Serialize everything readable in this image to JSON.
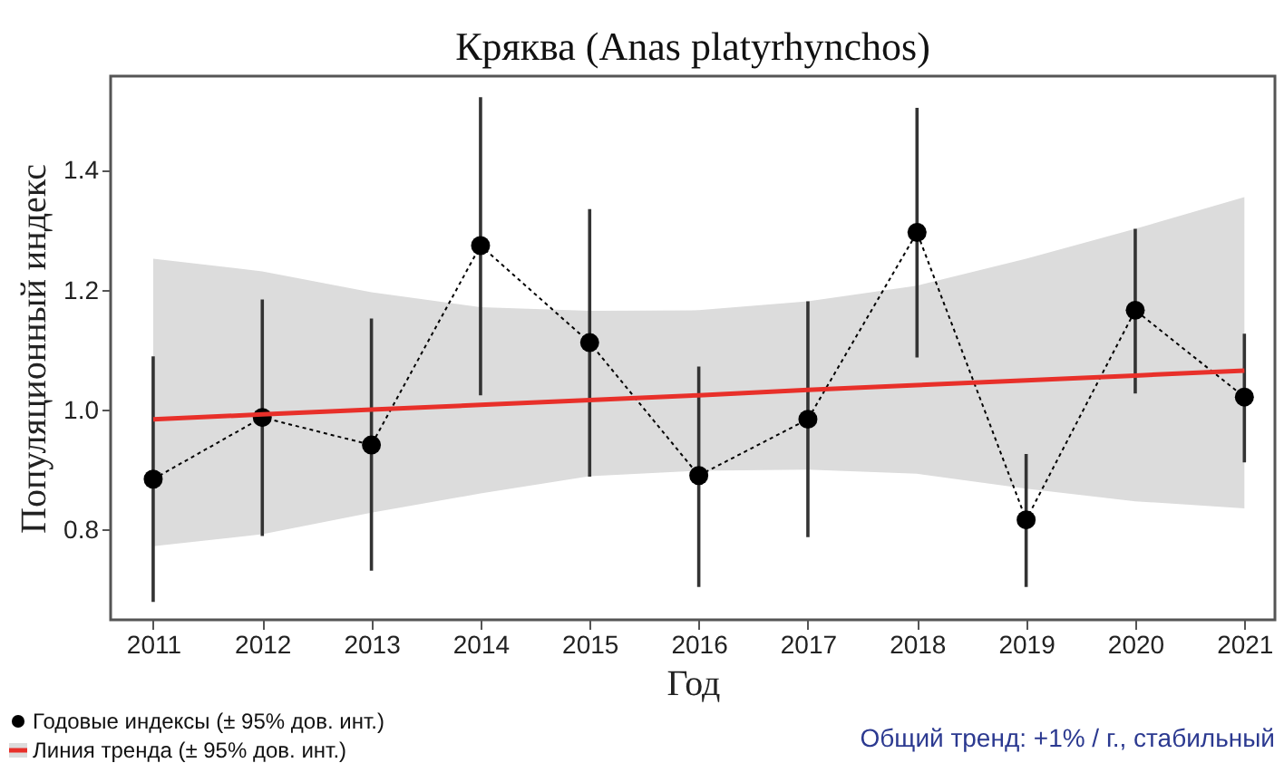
{
  "chart_data": {
    "type": "line",
    "title": "Кряква (Anas platyrhynchos)",
    "xlabel": "Год",
    "ylabel": "Популяционный индекс",
    "x": [
      2011,
      2012,
      2013,
      2014,
      2015,
      2016,
      2017,
      2018,
      2019,
      2020,
      2021
    ],
    "series": [
      {
        "name": "Годовые индексы (± 95% дов. инт.)",
        "color": "#000000",
        "marker": "circle",
        "line_style": "dotted",
        "values": [
          0.885,
          0.988,
          0.942,
          1.275,
          1.113,
          0.891,
          0.985,
          1.297,
          0.817,
          1.167,
          1.022
        ],
        "errors": [
          [
            0.68,
            1.09
          ],
          [
            0.79,
            1.185
          ],
          [
            0.732,
            1.153
          ],
          [
            1.025,
            1.523
          ],
          [
            0.889,
            1.336
          ],
          [
            0.705,
            1.073
          ],
          [
            0.788,
            1.182
          ],
          [
            1.088,
            1.505
          ],
          [
            0.705,
            0.927
          ],
          [
            1.028,
            1.303
          ],
          [
            0.913,
            1.128
          ]
        ]
      },
      {
        "name": "Линия тренда (± 95% дов. инт.)",
        "color": "#e8302a",
        "marker": "none",
        "line_style": "solid",
        "values": [
          0.985,
          0.993,
          1.001,
          1.009,
          1.017,
          1.025,
          1.034,
          1.042,
          1.05,
          1.058,
          1.066
        ],
        "lower": [
          0.773,
          0.793,
          0.829,
          0.861,
          0.89,
          0.899,
          0.901,
          0.894,
          0.869,
          0.848,
          0.836
        ],
        "upper": [
          1.253,
          1.232,
          1.197,
          1.172,
          1.166,
          1.167,
          1.182,
          1.208,
          1.253,
          1.303,
          1.356
        ]
      }
    ],
    "xlim": [
      2010.61,
      2021.28
    ],
    "xticks": [
      2011,
      2012,
      2013,
      2014,
      2015,
      2016,
      2017,
      2018,
      2019,
      2020,
      2021
    ],
    "ylim": [
      0.65,
      1.558
    ],
    "yticks": [
      {
        "value": 0.8,
        "label": "0.8"
      },
      {
        "value": 1,
        "label": "1.0"
      },
      {
        "value": 1.2,
        "label": "1.2"
      },
      {
        "value": 1.4,
        "label": "1.4"
      }
    ],
    "grid": false,
    "legend": "bottom left",
    "annotations": [
      "Общий тренд: +1% / г., стабильный"
    ]
  }
}
